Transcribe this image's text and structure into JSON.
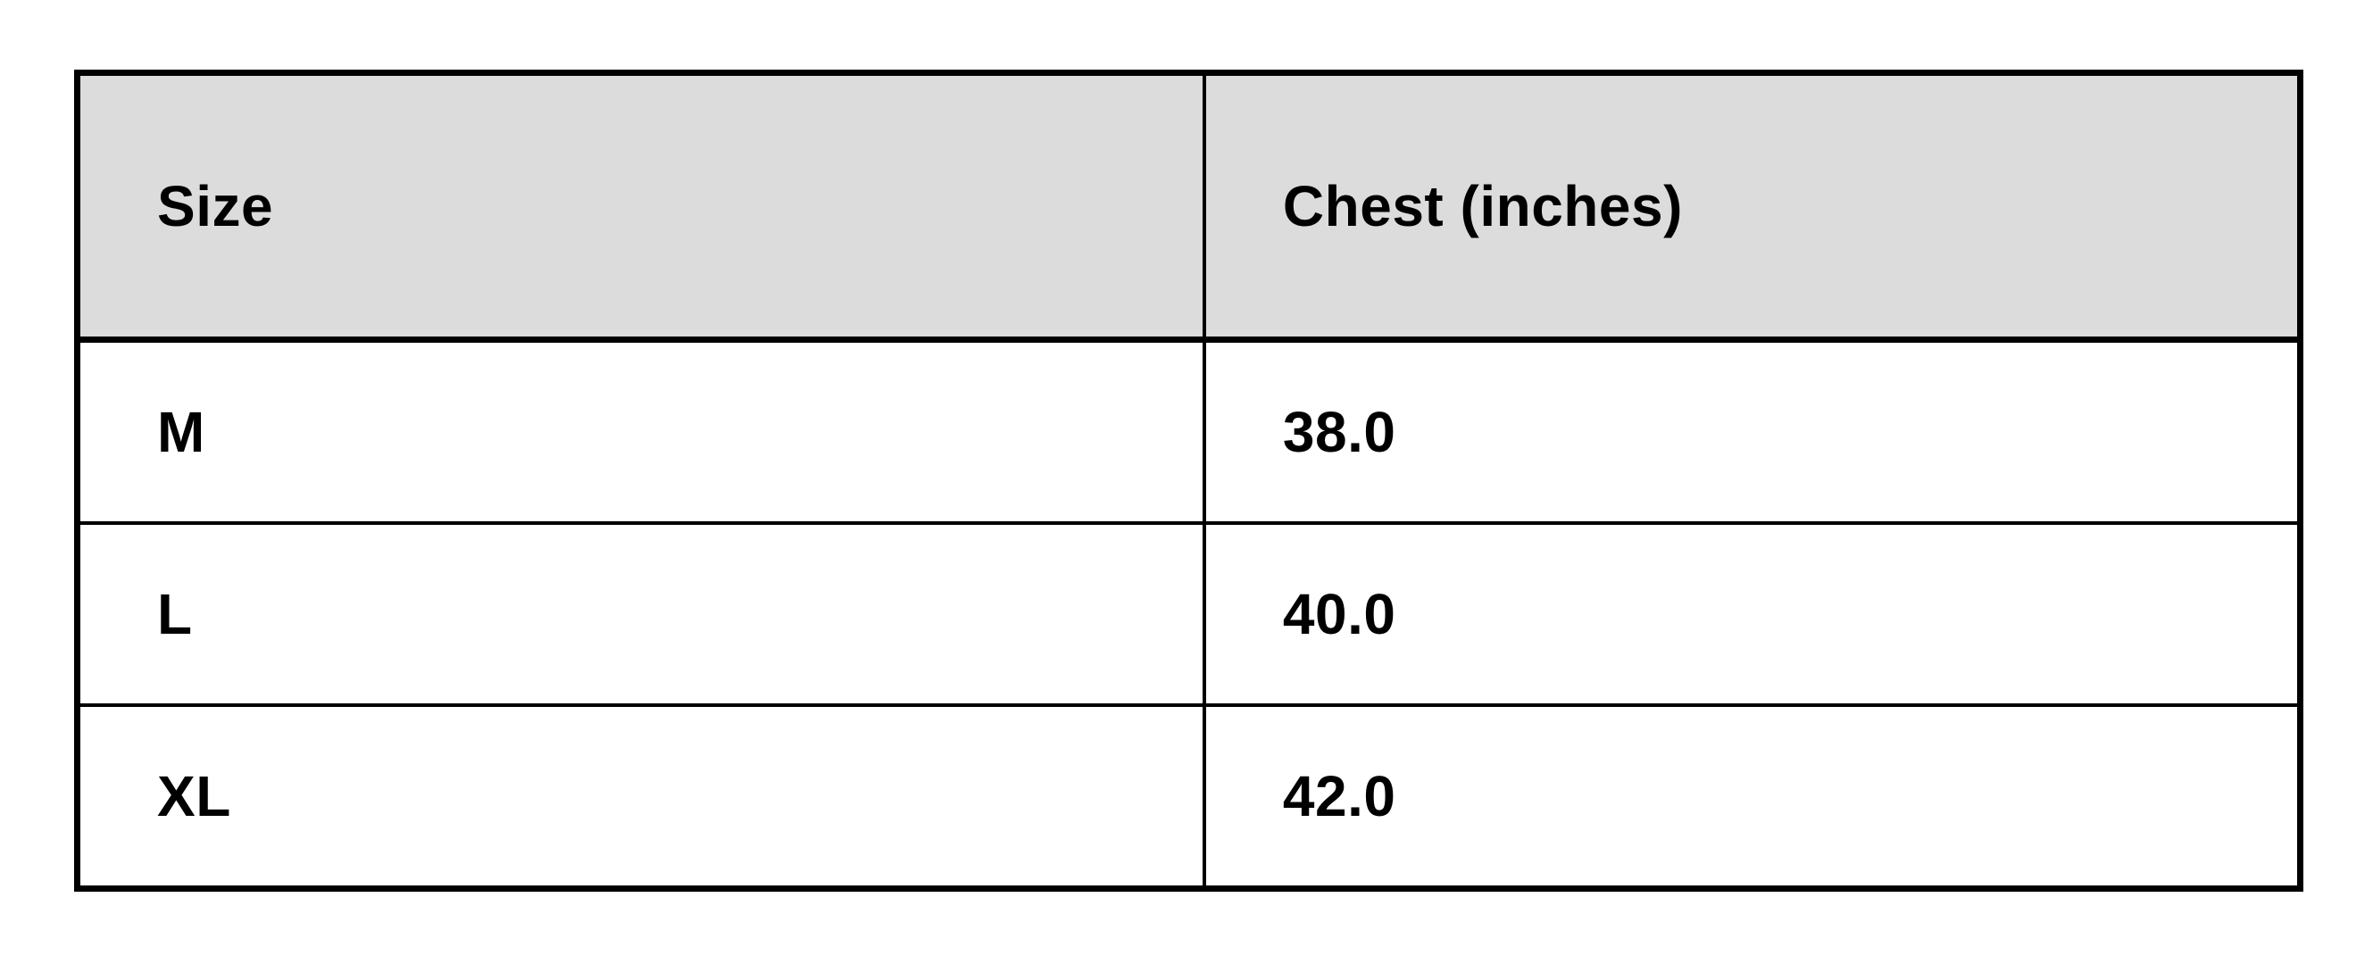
{
  "chart_data": {
    "type": "table",
    "title": "",
    "columns": [
      "Size",
      "Chest (inches)"
    ],
    "rows": [
      [
        "M",
        "38.0"
      ],
      [
        "L",
        "40.0"
      ],
      [
        "XL",
        "42.0"
      ]
    ],
    "header_bg": "#dcdcdc",
    "row_bg": "#ffffff",
    "border_color": "#000000",
    "text_color": "#000000"
  }
}
